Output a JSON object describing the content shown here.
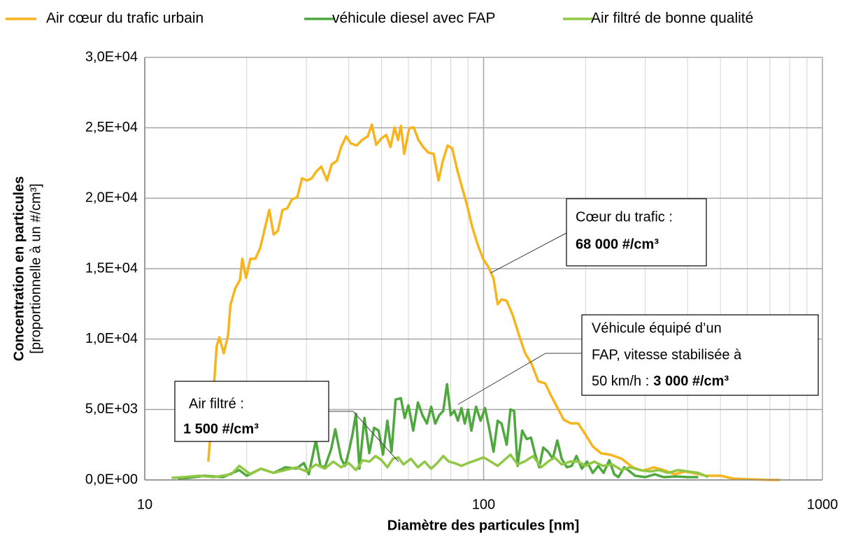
{
  "chart_data": {
    "type": "line",
    "x_label": "Diamètre des particules [nm]",
    "y_label": "Concentration en particules",
    "y_label_sub": "[proportionnelle à un #/cm³]",
    "x_log": true,
    "grid": true,
    "minor_grid": true,
    "legend": "top",
    "xlim": [
      10,
      1000
    ],
    "xticks": [
      10,
      100,
      1000
    ],
    "ylim": [
      0,
      30000
    ],
    "yticks": [
      {
        "value": 0,
        "label": "0,0E+00"
      },
      {
        "value": 5000,
        "label": "5,0E+03"
      },
      {
        "value": 10000,
        "label": "1,0E+04"
      },
      {
        "value": 15000,
        "label": "1,5E+04"
      },
      {
        "value": 20000,
        "label": "2,0E+04"
      },
      {
        "value": 25000,
        "label": "2,5E+04"
      },
      {
        "value": 30000,
        "label": "3,0E+04"
      }
    ],
    "annotations": [
      {
        "lines": [
          "Cœur du trafic :"
        ],
        "value": "68 000 #/cm³"
      },
      {
        "lines": [
          "Véhicule équipé d’un",
          "FAP, vitesse stabilisée à",
          "50 km/h :"
        ],
        "value": "3 000 #/cm³"
      },
      {
        "lines": [
          "Air filtré :"
        ],
        "value": "1 500 #/cm³"
      }
    ],
    "series": [
      {
        "name": "Air cœur du trafic urbain",
        "color": "#f7b41d",
        "x": [
          15.4,
          15.9,
          16.3,
          16.6,
          17.1,
          17.6,
          17.9,
          18.5,
          19.1,
          19.4,
          19.9,
          20.5,
          21.2,
          21.9,
          23.3,
          24.0,
          24.7,
          25.5,
          26.3,
          27.2,
          28.2,
          29.1,
          30.1,
          31.1,
          32.1,
          33.2,
          34.5,
          35.6,
          36.9,
          38.0,
          39.3,
          40.6,
          42.2,
          43.8,
          45.5,
          46.8,
          48.2,
          49.9,
          51.6,
          53.1,
          54.6,
          55.9,
          57.0,
          58.3,
          60.3,
          62.2,
          64.2,
          66.3,
          68.6,
          71.2,
          73.6,
          75.8,
          78.3,
          80.8,
          83.5,
          86.4,
          89.2,
          92.3,
          95.8,
          99.6,
          103.4,
          107.0,
          110.0,
          113.0,
          117.0,
          121.8,
          127.0,
          132.6,
          138.5,
          145.1,
          152.0,
          158.0,
          164.0,
          172.4,
          181.0,
          190.0,
          199.2,
          210.0,
          222.0,
          237.0,
          256.0,
          276.0,
          295.0,
          318.0,
          340.0,
          366.0,
          393.0,
          422.0,
          453.0,
          500.0,
          545.0,
          604.0,
          700.0,
          750.0
        ],
        "values": [
          1290,
          5760,
          9490,
          10130,
          8990,
          10230,
          12420,
          13610,
          14210,
          15700,
          14350,
          15700,
          15700,
          16440,
          19170,
          17430,
          17680,
          19170,
          19270,
          19920,
          20070,
          21410,
          21260,
          21410,
          21900,
          22250,
          21260,
          22400,
          22650,
          23640,
          24390,
          23890,
          23740,
          24140,
          24390,
          25230,
          23790,
          24240,
          24490,
          23640,
          25030,
          24140,
          25130,
          23150,
          24980,
          25030,
          24140,
          23640,
          23250,
          23150,
          21260,
          22650,
          23740,
          23540,
          22050,
          20760,
          19570,
          18080,
          16790,
          15700,
          15100,
          14300,
          12470,
          12820,
          12720,
          11720,
          10330,
          8990,
          8250,
          7000,
          6850,
          6010,
          5270,
          4270,
          4020,
          4020,
          3280,
          2380,
          1890,
          1790,
          1490,
          890,
          650,
          890,
          700,
          400,
          600,
          450,
          300,
          300,
          100,
          50,
          0,
          0
        ]
      },
      {
        "name": "véhicule diesel avec FAP",
        "color": "#4ea83e",
        "x": [
          12.5,
          13.5,
          15,
          17,
          19,
          20,
          22,
          24,
          26,
          28,
          29.5,
          30.5,
          32,
          33,
          34,
          35.5,
          36.5,
          38,
          39,
          40,
          41,
          42,
          43,
          44.5,
          46,
          47.5,
          49,
          50.5,
          52,
          53.5,
          55,
          57,
          58.5,
          60,
          62,
          64,
          66,
          68,
          70,
          72,
          74,
          76,
          78,
          80,
          82,
          84,
          86,
          88,
          90,
          92,
          95,
          98,
          101,
          104,
          107,
          110,
          113,
          117,
          120,
          123,
          126,
          130,
          134,
          138,
          142,
          146,
          150,
          155,
          160,
          165,
          170,
          176,
          182,
          188,
          195,
          202,
          210,
          218,
          226,
          235,
          243,
          250,
          260,
          270,
          280,
          300,
          320,
          340,
          370,
          400,
          430
        ],
        "values": [
          100,
          150,
          300,
          200,
          700,
          300,
          800,
          500,
          900,
          800,
          1200,
          400,
          2800,
          1000,
          900,
          2200,
          3600,
          1500,
          1000,
          2000,
          3200,
          4700,
          800,
          4400,
          1900,
          3700,
          3500,
          1800,
          4200,
          2000,
          5700,
          5800,
          4400,
          5300,
          3500,
          5500,
          4600,
          4000,
          5200,
          4000,
          4600,
          4900,
          6800,
          4600,
          4900,
          4200,
          5100,
          4000,
          5000,
          3500,
          5200,
          4200,
          5100,
          3600,
          2000,
          4200,
          4000,
          2500,
          5000,
          4900,
          1000,
          3500,
          2900,
          3000,
          1800,
          900,
          2300,
          2000,
          1500,
          2800,
          1500,
          900,
          1000,
          1700,
          800,
          1300,
          500,
          1000,
          500,
          1400,
          400,
          200,
          900,
          600,
          300,
          200,
          400,
          200,
          250,
          200,
          200
        ]
      },
      {
        "name": "Air filtré de bonne qualité",
        "color": "#90c845",
        "x": [
          12,
          13,
          14.5,
          16,
          18,
          19,
          20.5,
          22,
          24,
          26,
          28,
          30,
          32,
          34,
          36,
          38,
          40,
          42,
          44,
          46,
          48,
          50,
          52,
          54,
          56,
          58,
          61,
          64,
          67,
          70,
          73,
          76,
          79,
          82,
          86,
          90,
          95,
          100,
          105,
          110,
          115,
          120,
          126,
          132,
          140,
          148,
          155,
          162,
          170,
          180,
          190,
          200,
          212,
          225,
          240,
          255,
          270,
          290,
          310,
          330,
          350,
          375,
          400,
          430,
          460
        ],
        "values": [
          150,
          200,
          300,
          200,
          400,
          1000,
          400,
          800,
          500,
          700,
          900,
          600,
          1100,
          800,
          1300,
          900,
          1200,
          700,
          1400,
          1300,
          1700,
          1400,
          900,
          1500,
          1600,
          1100,
          1500,
          900,
          1300,
          800,
          1200,
          1700,
          1300,
          1200,
          1000,
          1200,
          1400,
          1600,
          1300,
          1000,
          1400,
          1800,
          1100,
          1300,
          1700,
          900,
          1300,
          1600,
          1100,
          1300,
          1300,
          1000,
          1300,
          1000,
          1100,
          700,
          900,
          700,
          600,
          700,
          500,
          700,
          600,
          500,
          200
        ]
      }
    ]
  }
}
